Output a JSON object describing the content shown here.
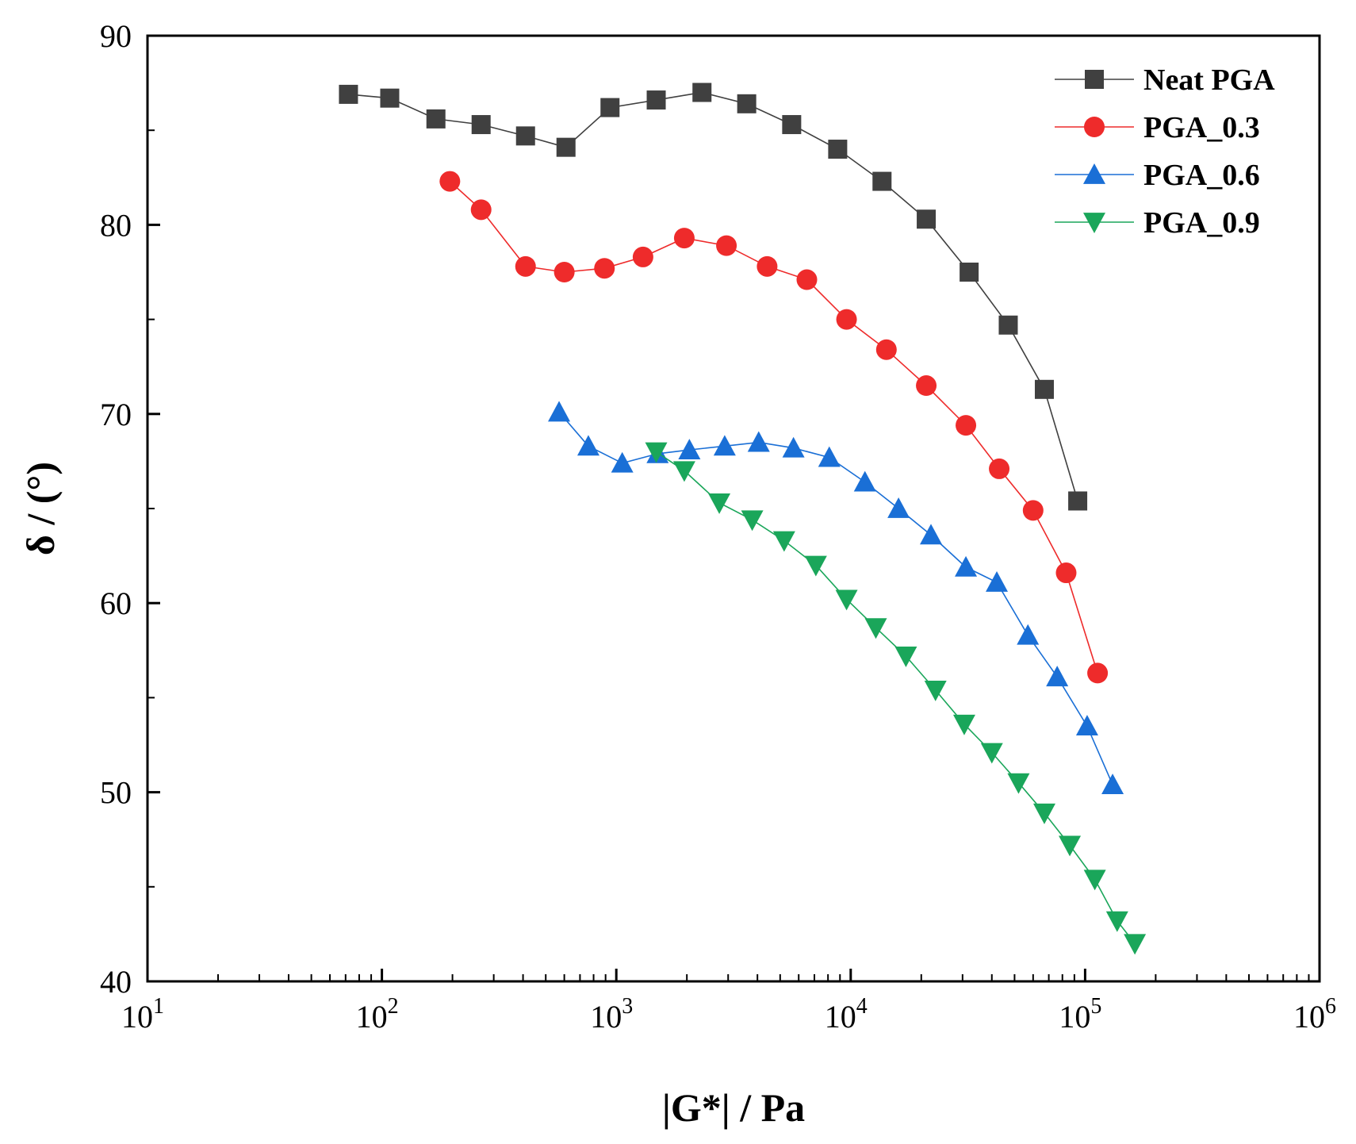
{
  "chart_data": {
    "type": "line",
    "title": "",
    "xlabel": "|G*| / Pa",
    "ylabel": "δ / (°)",
    "xscale": "log",
    "xlim": [
      10,
      1000000
    ],
    "ylim": [
      40,
      90
    ],
    "x_ticks": [
      {
        "base": "10",
        "exp": "1"
      },
      {
        "base": "10",
        "exp": "2"
      },
      {
        "base": "10",
        "exp": "3"
      },
      {
        "base": "10",
        "exp": "4"
      },
      {
        "base": "10",
        "exp": "5"
      },
      {
        "base": "10",
        "exp": "6"
      }
    ],
    "y_ticks": [
      "40",
      "50",
      "60",
      "70",
      "80",
      "90"
    ],
    "legend_position": "top-right",
    "series": [
      {
        "name": "Neat PGA",
        "color": "#404040",
        "marker": "square",
        "points": [
          [
            72,
            86.9
          ],
          [
            108,
            86.7
          ],
          [
            170,
            85.6
          ],
          [
            265,
            85.3
          ],
          [
            410,
            84.7
          ],
          [
            610,
            84.1
          ],
          [
            940,
            86.2
          ],
          [
            1480,
            86.6
          ],
          [
            2320,
            87.0
          ],
          [
            3600,
            86.4
          ],
          [
            5600,
            85.3
          ],
          [
            8800,
            84.0
          ],
          [
            13600,
            82.3
          ],
          [
            21000,
            80.3
          ],
          [
            32000,
            77.5
          ],
          [
            47000,
            74.7
          ],
          [
            67000,
            71.3
          ],
          [
            93000,
            65.4
          ]
        ]
      },
      {
        "name": "PGA_0.3",
        "color": "#ee2b2b",
        "marker": "circle",
        "points": [
          [
            195,
            82.3
          ],
          [
            265,
            80.8
          ],
          [
            410,
            77.8
          ],
          [
            600,
            77.5
          ],
          [
            890,
            77.7
          ],
          [
            1300,
            78.3
          ],
          [
            1950,
            79.3
          ],
          [
            2950,
            78.9
          ],
          [
            4400,
            77.8
          ],
          [
            6500,
            77.1
          ],
          [
            9600,
            75.0
          ],
          [
            14200,
            73.4
          ],
          [
            21000,
            71.5
          ],
          [
            31000,
            69.4
          ],
          [
            43000,
            67.1
          ],
          [
            60000,
            64.9
          ],
          [
            83000,
            61.6
          ],
          [
            113000,
            56.3
          ]
        ]
      },
      {
        "name": "PGA_0.6",
        "color": "#1a6fd6",
        "marker": "triangle-up",
        "points": [
          [
            570,
            70.1
          ],
          [
            760,
            68.3
          ],
          [
            1060,
            67.4
          ],
          [
            1500,
            67.9
          ],
          [
            2050,
            68.1
          ],
          [
            2900,
            68.3
          ],
          [
            4050,
            68.5
          ],
          [
            5700,
            68.2
          ],
          [
            8100,
            67.7
          ],
          [
            11500,
            66.4
          ],
          [
            16000,
            65.0
          ],
          [
            22000,
            63.6
          ],
          [
            31000,
            61.9
          ],
          [
            42000,
            61.1
          ],
          [
            57000,
            58.3
          ],
          [
            76000,
            56.1
          ],
          [
            102000,
            53.5
          ],
          [
            131000,
            50.4
          ]
        ]
      },
      {
        "name": "PGA_0.9",
        "color": "#1aa65a",
        "marker": "triangle-down",
        "points": [
          [
            1480,
            68.0
          ],
          [
            1950,
            67.0
          ],
          [
            2750,
            65.3
          ],
          [
            3800,
            64.4
          ],
          [
            5200,
            63.3
          ],
          [
            7100,
            62.0
          ],
          [
            9600,
            60.2
          ],
          [
            12800,
            58.7
          ],
          [
            17200,
            57.2
          ],
          [
            23000,
            55.4
          ],
          [
            30500,
            53.6
          ],
          [
            40000,
            52.1
          ],
          [
            52000,
            50.5
          ],
          [
            67000,
            48.9
          ],
          [
            86000,
            47.2
          ],
          [
            110000,
            45.4
          ],
          [
            137000,
            43.2
          ],
          [
            163000,
            42.0
          ]
        ]
      }
    ]
  }
}
